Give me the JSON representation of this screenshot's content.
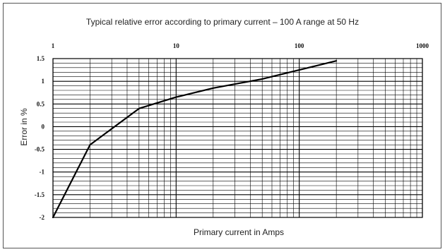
{
  "chart_data": {
    "type": "line",
    "title": "Typical relative error according to primary current – 100 A range at 50 Hz",
    "xlabel": "Primary current in Amps",
    "ylabel": "Error in %",
    "x_scale": "log",
    "xlim": [
      1,
      1000
    ],
    "ylim": [
      -2,
      1.5
    ],
    "x_ticks": [
      "1",
      "10",
      "100",
      "1000"
    ],
    "y_ticks": [
      "1.5",
      "1",
      "0.5",
      "0",
      "-0.5",
      "-1",
      "-1.5",
      "-2"
    ],
    "grid": true,
    "series": [
      {
        "x": [
          1,
          2,
          5,
          10,
          20,
          50,
          100,
          200
        ],
        "y": [
          -2,
          -0.4,
          0.4,
          0.65,
          0.85,
          1.05,
          1.25,
          1.45
        ]
      }
    ]
  }
}
